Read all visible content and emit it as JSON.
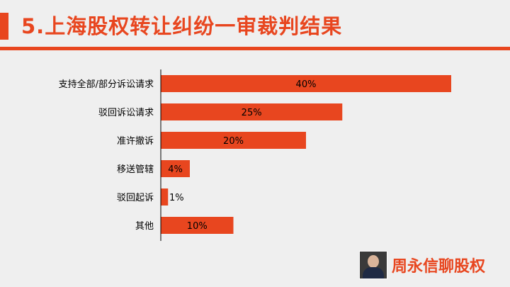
{
  "header": {
    "title": "5.上海股权转让纠纷一审裁判结果"
  },
  "brand": {
    "name": "周永信聊股权"
  },
  "colors": {
    "accent": "#e8461f",
    "background": "#efefef",
    "axis": "#000000"
  },
  "chart_data": {
    "type": "bar",
    "orientation": "horizontal",
    "categories": [
      "支持全部/部分诉讼请求",
      "驳回诉讼请求",
      "准许撤诉",
      "移送管辖",
      "驳回起诉",
      "其他"
    ],
    "values": [
      40,
      25,
      20,
      4,
      1,
      10
    ],
    "labels": [
      "40%",
      "25%",
      "20%",
      "4%",
      "1%",
      "10%"
    ],
    "unit": "%",
    "xlim": [
      0,
      40
    ],
    "grid": false,
    "legend": "none"
  }
}
